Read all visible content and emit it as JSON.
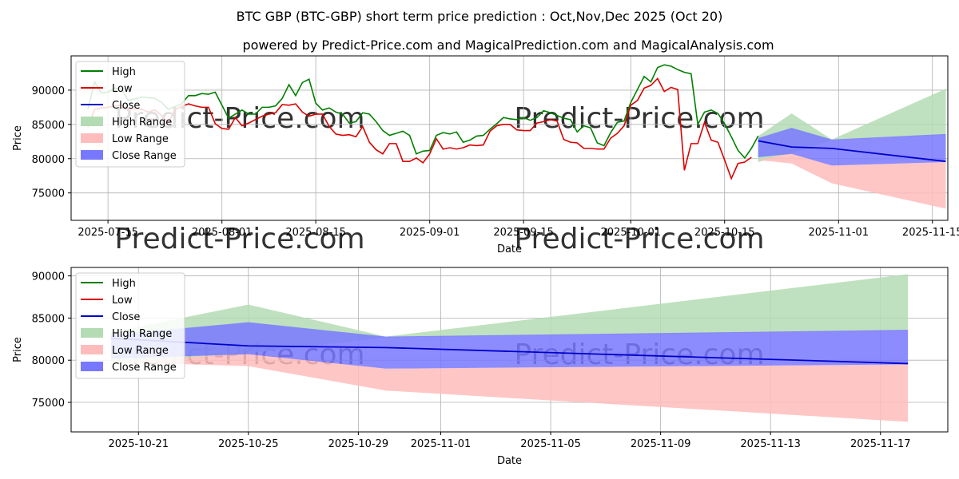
{
  "title": "BTC GBP (BTC-GBP) short term price prediction : Oct,Nov,Dec 2025 (Oct 20)",
  "subtitle": "powered by Predict-Price.com and MagicalPrediction.com and MagicalAnalysis.com",
  "watermark": "Predict-Price.com",
  "colors": {
    "high": "#008000",
    "low": "#dd0000",
    "close": "#0000cc",
    "high_range": "#b4dcb4",
    "low_range": "#ffbcbc",
    "close_range": "#7878ff"
  },
  "legend": [
    "High",
    "Low",
    "Close",
    "High Range",
    "Low Range",
    "Close Range"
  ],
  "chart_data": [
    {
      "type": "line",
      "title": "BTC GBP (BTC-GBP) short term price prediction : Oct,Nov,Dec 2025 (Oct 20)",
      "xlabel": "Date",
      "ylabel": "Price",
      "x_start": "2025-07-12",
      "xlim": [
        -2.5,
        128.3
      ],
      "ylim": [
        71000,
        95000
      ],
      "xticks": [
        {
          "day": 3,
          "label": "2025-07-15"
        },
        {
          "day": 20,
          "label": "2025-08-01"
        },
        {
          "day": 34,
          "label": "2025-08-15"
        },
        {
          "day": 51,
          "label": "2025-09-01"
        },
        {
          "day": 65,
          "label": "2025-09-15"
        },
        {
          "day": 81,
          "label": "2025-10-01"
        },
        {
          "day": 95,
          "label": "2025-10-15"
        },
        {
          "day": 112,
          "label": "2025-11-01"
        },
        {
          "day": 126,
          "label": "2025-11-15"
        }
      ],
      "yticks": [
        75000,
        80000,
        85000,
        90000
      ],
      "grid": true,
      "legend_position": "upper left",
      "series": [
        {
          "name": "High",
          "values": [
            87200,
            91200,
            89600,
            89700,
            90300,
            90200,
            88500,
            88700,
            89000,
            88900,
            88800,
            88200,
            87200,
            87600,
            88000,
            89200,
            89200,
            89500,
            89400,
            89700,
            87800,
            85900,
            86500,
            87100,
            86500,
            86500,
            87500,
            87500,
            87700,
            88800,
            90800,
            89200,
            91100,
            91600,
            88100,
            87100,
            87400,
            86800,
            86500,
            85200,
            85400,
            86700,
            86500,
            85400,
            84100,
            83400,
            83700,
            84000,
            83400,
            80700,
            81100,
            81200,
            83400,
            83800,
            83600,
            83900,
            82400,
            82700,
            83300,
            83400,
            84300,
            85100,
            86000,
            85800,
            85700,
            86000,
            85600,
            86000,
            87000,
            86700,
            86300,
            85900,
            85700,
            83900,
            84800,
            84500,
            82300,
            81900,
            83800,
            85300,
            85500,
            88200,
            90100,
            92000,
            91200,
            93300,
            93700,
            93500,
            93000,
            92600,
            92400,
            85000,
            86800,
            87100,
            86600,
            85100,
            83200,
            81200,
            80100,
            81500,
            83300
          ],
          "pred_x": [
            100,
            105,
            111,
            128
          ],
          "pred_lo": [
            79500,
            80800,
            82700,
            83500
          ],
          "pred_hi": [
            83300,
            86600,
            82800,
            90200
          ]
        },
        {
          "name": "Low",
          "values": [
            84600,
            87200,
            87400,
            87500,
            87700,
            87800,
            87100,
            87300,
            87200,
            86800,
            87100,
            86300,
            85200,
            87200,
            87600,
            88000,
            87700,
            87500,
            87500,
            85100,
            84400,
            84300,
            86000,
            84800,
            85200,
            85700,
            86200,
            86500,
            86700,
            87900,
            87800,
            88000,
            86800,
            86200,
            86500,
            86500,
            84700,
            83600,
            83400,
            83500,
            83200,
            84700,
            82400,
            81300,
            80700,
            82200,
            82200,
            79600,
            79600,
            80100,
            79400,
            80700,
            82900,
            81400,
            81600,
            81400,
            81600,
            82000,
            81900,
            82000,
            84000,
            84800,
            85000,
            85000,
            84200,
            84100,
            84100,
            85200,
            85400,
            85700,
            85500,
            82800,
            82400,
            82300,
            81500,
            81500,
            81400,
            81400,
            83000,
            83700,
            84800,
            87800,
            88500,
            90300,
            90700,
            91700,
            89800,
            90400,
            90100,
            78300,
            82200,
            82200,
            85300,
            82700,
            82400,
            79800,
            77100,
            79300,
            79500,
            80200
          ],
          "pred_x": [
            100,
            105,
            111,
            128
          ],
          "pred_lo": [
            79800,
            79300,
            76400,
            72700
          ],
          "pred_hi": [
            79800,
            80800,
            79000,
            79500
          ]
        },
        {
          "name": "Close",
          "values": [],
          "pred_x": [
            100,
            105,
            111,
            128
          ],
          "pred_values": [
            82600,
            81700,
            81500,
            79600
          ],
          "pred_lo": [
            80200,
            80700,
            79000,
            79500
          ],
          "pred_hi": [
            83000,
            84500,
            82800,
            83600
          ]
        }
      ]
    },
    {
      "type": "line",
      "title": "",
      "xlabel": "Date",
      "ylabel": "Price",
      "x_start": "2025-10-20",
      "xlim": [
        -1.45,
        30.45
      ],
      "ylim": [
        71500,
        91000
      ],
      "xticks": [
        {
          "day": 1,
          "label": "2025-10-21"
        },
        {
          "day": 5,
          "label": "2025-10-25"
        },
        {
          "day": 9,
          "label": "2025-10-29"
        },
        {
          "day": 12,
          "label": "2025-11-01"
        },
        {
          "day": 16,
          "label": "2025-11-05"
        },
        {
          "day": 20,
          "label": "2025-11-09"
        },
        {
          "day": 24,
          "label": "2025-11-13"
        },
        {
          "day": 28,
          "label": "2025-11-17"
        }
      ],
      "yticks": [
        75000,
        80000,
        85000,
        90000
      ],
      "grid": true,
      "legend_position": "upper left",
      "series": [
        {
          "name": "High",
          "values": [],
          "pred_x": [
            0,
            5,
            10,
            29
          ],
          "pred_lo": [
            79500,
            80800,
            82700,
            83500
          ],
          "pred_hi": [
            83300,
            86600,
            82800,
            90200
          ]
        },
        {
          "name": "Low",
          "values": [],
          "pred_x": [
            0,
            5,
            10,
            29
          ],
          "pred_lo": [
            79800,
            79300,
            76400,
            72700
          ],
          "pred_hi": [
            79800,
            80800,
            79000,
            79500
          ]
        },
        {
          "name": "Close",
          "values": [],
          "pred_x": [
            0,
            5,
            10,
            29
          ],
          "pred_values": [
            82600,
            81700,
            81500,
            79600
          ],
          "pred_lo": [
            80200,
            80700,
            79000,
            79500
          ],
          "pred_hi": [
            83000,
            84500,
            82800,
            83600
          ]
        }
      ]
    }
  ]
}
